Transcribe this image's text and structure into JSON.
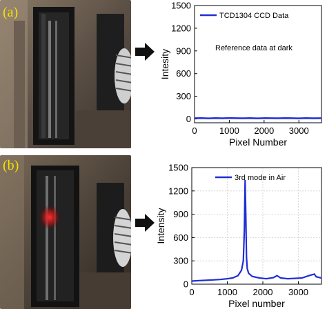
{
  "panels": [
    {
      "letter": "(a)"
    },
    {
      "letter": "(b)"
    }
  ],
  "colors": {
    "series": "#1f2fd6",
    "label": "#f5e000"
  },
  "chart_data": [
    {
      "type": "line",
      "xlabel": "Pixel Number",
      "ylabel": "Intesity",
      "xlim": [
        0,
        3650
      ],
      "ylim": [
        -50,
        1500
      ],
      "xticks": [
        0,
        1000,
        2000,
        3000
      ],
      "yticks": [
        0,
        300,
        600,
        900,
        1200,
        1500
      ],
      "legend": "top-left",
      "annotation": "Reference data at dark",
      "grid": false,
      "series": [
        {
          "name": "TCD1304 CCD Data",
          "x": [
            0,
            200,
            400,
            600,
            800,
            1000,
            1200,
            1400,
            1600,
            1800,
            2000,
            2200,
            2400,
            2600,
            2800,
            3000,
            3200,
            3400,
            3650
          ],
          "y": [
            10,
            12,
            8,
            11,
            9,
            13,
            10,
            9,
            12,
            8,
            11,
            10,
            9,
            12,
            10,
            8,
            11,
            9,
            10
          ]
        }
      ]
    },
    {
      "type": "line",
      "xlabel": "Pixel number",
      "ylabel": "Intensity",
      "xlim": [
        0,
        3650
      ],
      "ylim": [
        0,
        1500
      ],
      "xticks": [
        0,
        1000,
        2000,
        3000
      ],
      "yticks": [
        0,
        300,
        600,
        900,
        1200,
        1500
      ],
      "legend": "top-center",
      "grid": true,
      "series": [
        {
          "name": "3rd mode in Air",
          "x": [
            0,
            200,
            400,
            600,
            800,
            1000,
            1150,
            1300,
            1400,
            1450,
            1480,
            1500,
            1520,
            1540,
            1560,
            1600,
            1700,
            1900,
            2100,
            2300,
            2400,
            2500,
            2700,
            2900,
            3100,
            3300,
            3450,
            3500,
            3650
          ],
          "y": [
            40,
            45,
            50,
            55,
            60,
            70,
            80,
            110,
            180,
            300,
            700,
            1340,
            900,
            350,
            200,
            140,
            100,
            80,
            70,
            85,
            110,
            80,
            70,
            75,
            80,
            110,
            130,
            95,
            80
          ]
        }
      ]
    }
  ]
}
